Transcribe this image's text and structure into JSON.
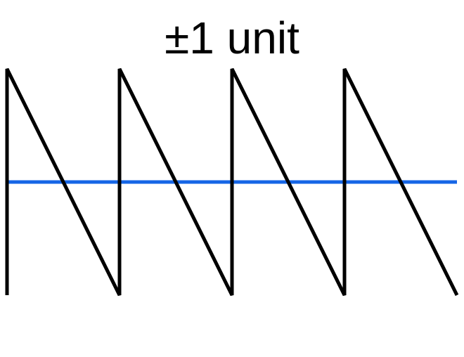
{
  "title": "±1 unit",
  "diagram": {
    "waveform": {
      "shape": "sawtooth",
      "periods": 4,
      "color": "#000000"
    },
    "baseline": {
      "color": "#1565e6"
    }
  }
}
